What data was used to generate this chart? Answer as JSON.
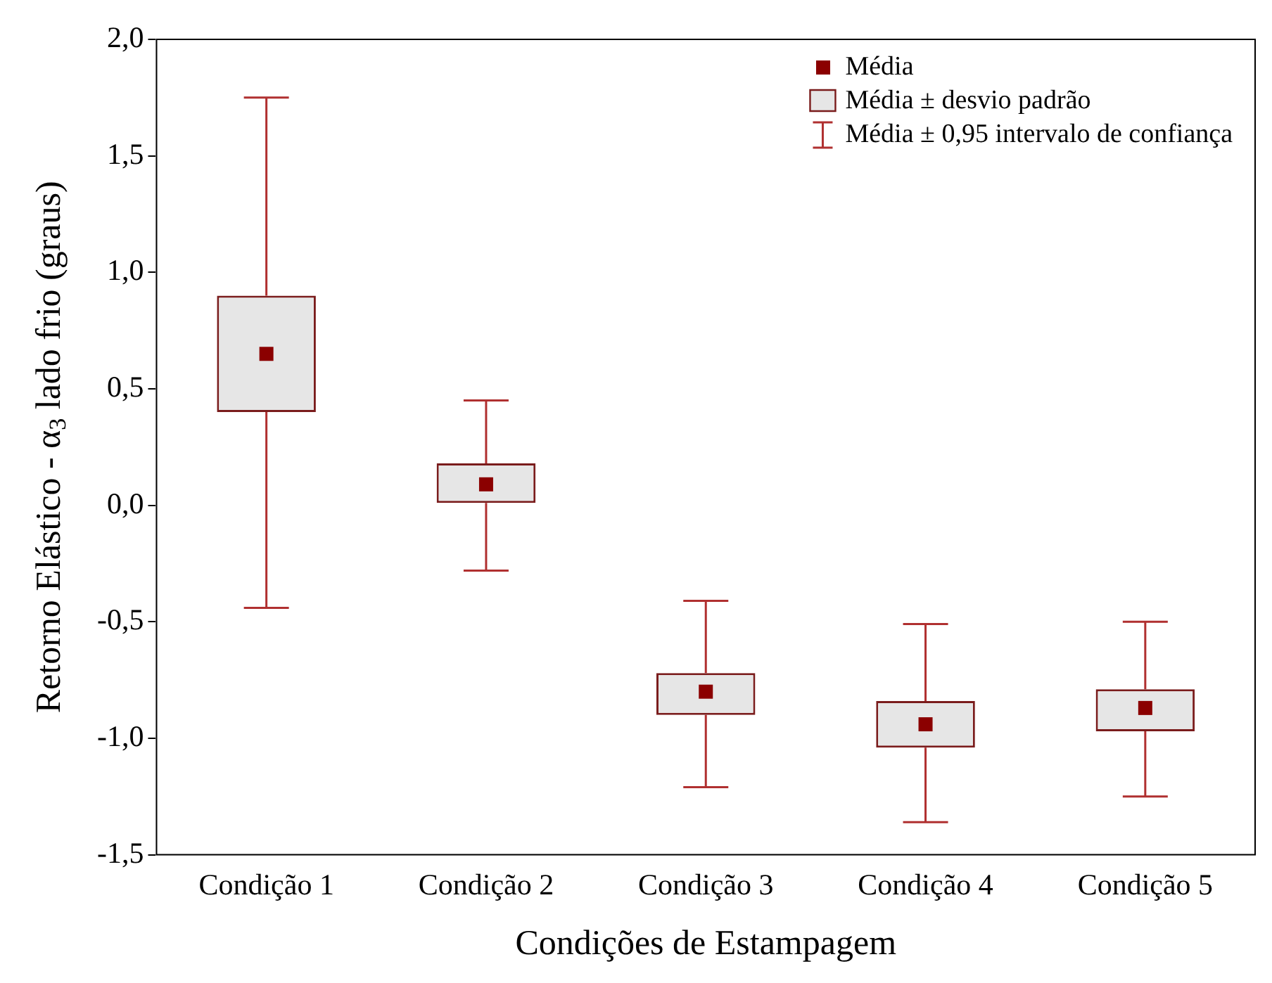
{
  "chart_data": {
    "type": "box",
    "xlabel": "Condições de Estampagem",
    "ylabel": "Retorno Elástico - α$_{3}$ lado frio (graus)",
    "categories": [
      "Condição 1",
      "Condição 2",
      "Condição 3",
      "Condição 4",
      "Condição 5"
    ],
    "series": [
      {
        "name": "Média ± desvio padrão",
        "color": "#7a1c1c",
        "boxes": [
          {
            "low": -0.44,
            "q1": 0.4,
            "q3": 0.9,
            "high": 1.75,
            "mean": 0.65
          },
          {
            "low": -0.28,
            "q1": 0.01,
            "q3": 0.18,
            "high": 0.45,
            "mean": 0.09
          },
          {
            "low": -1.21,
            "q1": -0.9,
            "q3": -0.72,
            "high": -0.41,
            "mean": -0.8
          },
          {
            "low": -1.36,
            "q1": -1.04,
            "q3": -0.84,
            "high": -0.51,
            "mean": -0.94
          },
          {
            "low": -1.25,
            "q1": -0.97,
            "q3": -0.79,
            "high": -0.5,
            "mean": -0.87
          }
        ]
      }
    ],
    "annotations": [
      "Média",
      "Média ± 0,95 intervalo de confiança"
    ],
    "ylim": [
      -1.5,
      2.0
    ],
    "yticks": [
      {
        "value": -1.5,
        "label": "-1,5"
      },
      {
        "value": -1,
        "label": "-1,0"
      },
      {
        "value": -0.5,
        "label": "-0,5"
      },
      {
        "value": 0,
        "label": "0,0"
      },
      {
        "value": 0.5,
        "label": "0,5"
      },
      {
        "value": 1,
        "label": "1,0"
      },
      {
        "value": 1.5,
        "label": "1,5"
      },
      {
        "value": 2,
        "label": "2,0"
      }
    ],
    "grid": false,
    "legend": "top right"
  }
}
